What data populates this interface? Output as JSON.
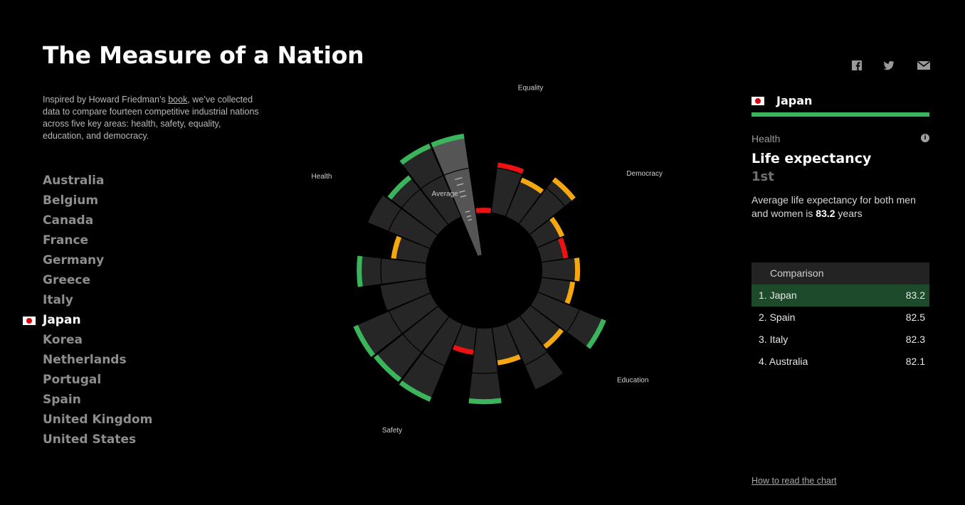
{
  "page": {
    "title": "The Measure of a Nation",
    "intro": {
      "before": "Inspired by Howard Friedman’s ",
      "link": "book",
      "after": ", we’ve collected data to compare fourteen competitive industrial nations across five key areas: health, safety, equality, education, and democracy."
    }
  },
  "countries": [
    {
      "label": "Australia"
    },
    {
      "label": "Belgium"
    },
    {
      "label": "Canada"
    },
    {
      "label": "France"
    },
    {
      "label": "Germany"
    },
    {
      "label": "Greece"
    },
    {
      "label": "Italy"
    },
    {
      "label": "Japan",
      "active": true
    },
    {
      "label": "Korea"
    },
    {
      "label": "Netherlands"
    },
    {
      "label": "Portugal"
    },
    {
      "label": "Spain"
    },
    {
      "label": "United Kingdom"
    },
    {
      "label": "United States"
    }
  ],
  "share": [
    {
      "icon": "facebook-icon"
    },
    {
      "icon": "twitter-icon"
    },
    {
      "icon": "email-icon"
    }
  ],
  "panel": {
    "country": "Japan",
    "category": "Health",
    "metric": "Life expectancy",
    "rank": "1st",
    "description_before": "Average life expectancy for both men and women is ",
    "description_value": "83.2",
    "description_after": " years",
    "info_icon": "info-icon"
  },
  "comparison": {
    "header": "Comparison",
    "rows": [
      {
        "rank": "1. Japan",
        "value": "83.2",
        "highlight": true
      },
      {
        "rank": "2. Spain",
        "value": "82.5"
      },
      {
        "rank": "3. Italy",
        "value": "82.3"
      },
      {
        "rank": "4. Australia",
        "value": "82.1"
      }
    ]
  },
  "footer": {
    "how_to": "How to read the chart"
  },
  "colors": {
    "bg": "#000000",
    "segment": "#262626",
    "selected_segment": "#555555",
    "high": "#3bb55c",
    "mid": "#f5a70f",
    "low": "#ee1111"
  },
  "chart_data": {
    "type": "radial-bar",
    "country": "Japan",
    "category_labels": [
      "Health",
      "Safety",
      "Education",
      "Democracy",
      "Equality",
      "Average"
    ],
    "segments": [
      {
        "category": "Health",
        "value": 0.95,
        "rating": "high",
        "selected": true
      },
      {
        "category": "Health",
        "value": 0.95,
        "rating": "high"
      },
      {
        "category": "Health",
        "value": 0.75,
        "rating": "high"
      },
      {
        "category": "Health",
        "value": 0.8,
        "rating": "none"
      },
      {
        "category": "Health",
        "value": 0.42,
        "rating": "mid"
      },
      {
        "category": "Health",
        "value": 0.82,
        "rating": "high"
      },
      {
        "category": "Health",
        "value": 0.55,
        "rating": "none"
      },
      {
        "category": "Safety",
        "value": 1.0,
        "rating": "high"
      },
      {
        "category": "Safety",
        "value": 0.98,
        "rating": "high"
      },
      {
        "category": "Safety",
        "value": 1.0,
        "rating": "high"
      },
      {
        "category": "Safety",
        "value": 0.32,
        "rating": "low"
      },
      {
        "category": "Safety",
        "value": 0.9,
        "rating": "high"
      },
      {
        "category": "Education",
        "value": 0.45,
        "rating": "mid"
      },
      {
        "category": "Education",
        "value": 0.85,
        "rating": "none"
      },
      {
        "category": "Education",
        "value": 0.5,
        "rating": "mid"
      },
      {
        "category": "Education",
        "value": 0.88,
        "rating": "high"
      },
      {
        "category": "Education",
        "value": 0.4,
        "rating": "mid"
      },
      {
        "category": "Education",
        "value": 0.45,
        "rating": "mid"
      },
      {
        "category": "Democracy",
        "value": 0.32,
        "rating": "low"
      },
      {
        "category": "Democracy",
        "value": 0.35,
        "rating": "mid"
      },
      {
        "category": "Democracy",
        "value": 0.7,
        "rating": "mid"
      },
      {
        "category": "Equality",
        "value": 0.5,
        "rating": "mid"
      },
      {
        "category": "Equality",
        "value": 0.6,
        "rating": "low"
      },
      {
        "category": "Equality",
        "value": 0.05,
        "rating": "low"
      }
    ]
  }
}
